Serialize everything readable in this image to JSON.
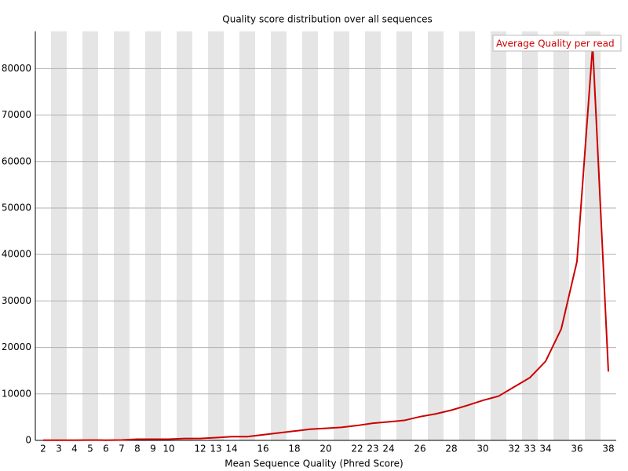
{
  "chart_data": {
    "type": "line",
    "title": "Quality score distribution over all sequences",
    "x_label": "Mean Sequence Quality (Phred Score)",
    "categories": [
      "2",
      "3",
      "4",
      "5",
      "6",
      "7",
      "8",
      "9",
      "10",
      null,
      "12",
      "13",
      "14",
      null,
      "16",
      null,
      "18",
      null,
      "20",
      null,
      "22",
      "23",
      "24",
      null,
      "26",
      null,
      "28",
      null,
      "30",
      null,
      "32",
      "33",
      "34",
      null,
      "36",
      null,
      "38"
    ],
    "series": [
      {
        "name": "Average Quality per read",
        "color": "#cc0000",
        "values": [
          50,
          50,
          50,
          60,
          50,
          80,
          250,
          250,
          250,
          400,
          400,
          600,
          800,
          800,
          1200,
          1600,
          2000,
          2400,
          2600,
          2800,
          3200,
          3700,
          4000,
          4300,
          5100,
          5700,
          6500,
          7500,
          8600,
          9500,
          11500,
          13500,
          17000,
          24000,
          38500,
          85000,
          14800
        ]
      }
    ],
    "ylim": [
      0,
      88000
    ],
    "yticks": [
      0,
      10000,
      20000,
      30000,
      40000,
      50000,
      60000,
      70000,
      80000
    ],
    "grid": true,
    "legend": "top-right"
  }
}
